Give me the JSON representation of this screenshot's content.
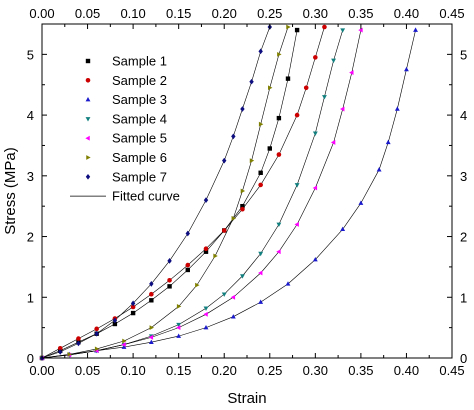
{
  "chart_data": {
    "type": "scatter",
    "xlabel": "Strain",
    "ylabel": "Stress (MPa)",
    "xlim": [
      0,
      0.45
    ],
    "ylim": [
      0,
      5.5
    ],
    "x_ticks": [
      "0.00",
      "0.05",
      "0.10",
      "0.15",
      "0.20",
      "0.25",
      "0.30",
      "0.35",
      "0.40",
      "0.45"
    ],
    "y_ticks": [
      "0",
      "1",
      "2",
      "3",
      "4",
      "5"
    ],
    "legend_position": "top-left",
    "series": [
      {
        "name": "Sample 1",
        "marker": "square",
        "color": "#000000",
        "x": [
          0.0,
          0.02,
          0.04,
          0.06,
          0.08,
          0.1,
          0.12,
          0.14,
          0.16,
          0.18,
          0.2,
          0.22,
          0.24,
          0.25,
          0.26,
          0.27,
          0.28
        ],
        "y": [
          0.0,
          0.12,
          0.26,
          0.4,
          0.56,
          0.74,
          0.95,
          1.18,
          1.45,
          1.75,
          2.1,
          2.5,
          3.05,
          3.45,
          3.95,
          4.6,
          5.4
        ]
      },
      {
        "name": "Sample 2",
        "marker": "circle",
        "color": "#cc0000",
        "x": [
          0.0,
          0.02,
          0.04,
          0.06,
          0.08,
          0.1,
          0.12,
          0.14,
          0.16,
          0.18,
          0.2,
          0.22,
          0.24,
          0.26,
          0.28,
          0.29,
          0.3,
          0.31
        ],
        "y": [
          0.0,
          0.16,
          0.32,
          0.48,
          0.65,
          0.84,
          1.05,
          1.28,
          1.53,
          1.8,
          2.1,
          2.45,
          2.85,
          3.35,
          4.0,
          4.45,
          4.95,
          5.45
        ]
      },
      {
        "name": "Sample 3",
        "marker": "triangle-up",
        "color": "#1a1acc",
        "x": [
          0.0,
          0.03,
          0.06,
          0.09,
          0.12,
          0.15,
          0.18,
          0.21,
          0.24,
          0.27,
          0.3,
          0.33,
          0.35,
          0.37,
          0.38,
          0.39,
          0.4,
          0.41
        ],
        "y": [
          0.0,
          0.06,
          0.12,
          0.18,
          0.26,
          0.36,
          0.5,
          0.68,
          0.92,
          1.22,
          1.62,
          2.12,
          2.55,
          3.1,
          3.55,
          4.1,
          4.75,
          5.4
        ]
      },
      {
        "name": "Sample 4",
        "marker": "triangle-down",
        "color": "#138080",
        "x": [
          0.0,
          0.03,
          0.06,
          0.09,
          0.12,
          0.15,
          0.18,
          0.2,
          0.22,
          0.24,
          0.26,
          0.28,
          0.3,
          0.31,
          0.32,
          0.33
        ],
        "y": [
          0.0,
          0.05,
          0.12,
          0.22,
          0.36,
          0.55,
          0.82,
          1.05,
          1.35,
          1.72,
          2.2,
          2.85,
          3.7,
          4.3,
          4.9,
          5.4
        ]
      },
      {
        "name": "Sample 5",
        "marker": "triangle-left",
        "color": "#ff00ff",
        "x": [
          0.0,
          0.03,
          0.06,
          0.09,
          0.12,
          0.15,
          0.18,
          0.21,
          0.24,
          0.26,
          0.28,
          0.3,
          0.32,
          0.33,
          0.34,
          0.35
        ],
        "y": [
          0.0,
          0.05,
          0.12,
          0.22,
          0.34,
          0.5,
          0.72,
          1.0,
          1.4,
          1.75,
          2.2,
          2.8,
          3.55,
          4.1,
          4.7,
          5.4
        ]
      },
      {
        "name": "Sample 6",
        "marker": "triangle-right",
        "color": "#808000",
        "x": [
          0.0,
          0.03,
          0.06,
          0.09,
          0.12,
          0.15,
          0.17,
          0.19,
          0.21,
          0.22,
          0.23,
          0.24,
          0.25,
          0.26,
          0.27
        ],
        "y": [
          0.0,
          0.06,
          0.15,
          0.28,
          0.5,
          0.85,
          1.2,
          1.68,
          2.3,
          2.75,
          3.25,
          3.85,
          4.45,
          5.0,
          5.45
        ]
      },
      {
        "name": "Sample 7",
        "marker": "diamond",
        "color": "#0d0d80",
        "x": [
          0.0,
          0.02,
          0.04,
          0.06,
          0.08,
          0.1,
          0.12,
          0.14,
          0.16,
          0.18,
          0.2,
          0.21,
          0.22,
          0.23,
          0.24,
          0.25
        ],
        "y": [
          0.0,
          0.1,
          0.24,
          0.4,
          0.62,
          0.9,
          1.22,
          1.6,
          2.05,
          2.6,
          3.25,
          3.65,
          4.1,
          4.55,
          5.05,
          5.45
        ]
      }
    ],
    "fitted_curve": {
      "name": "Fitted curve",
      "color": "#000000"
    }
  }
}
